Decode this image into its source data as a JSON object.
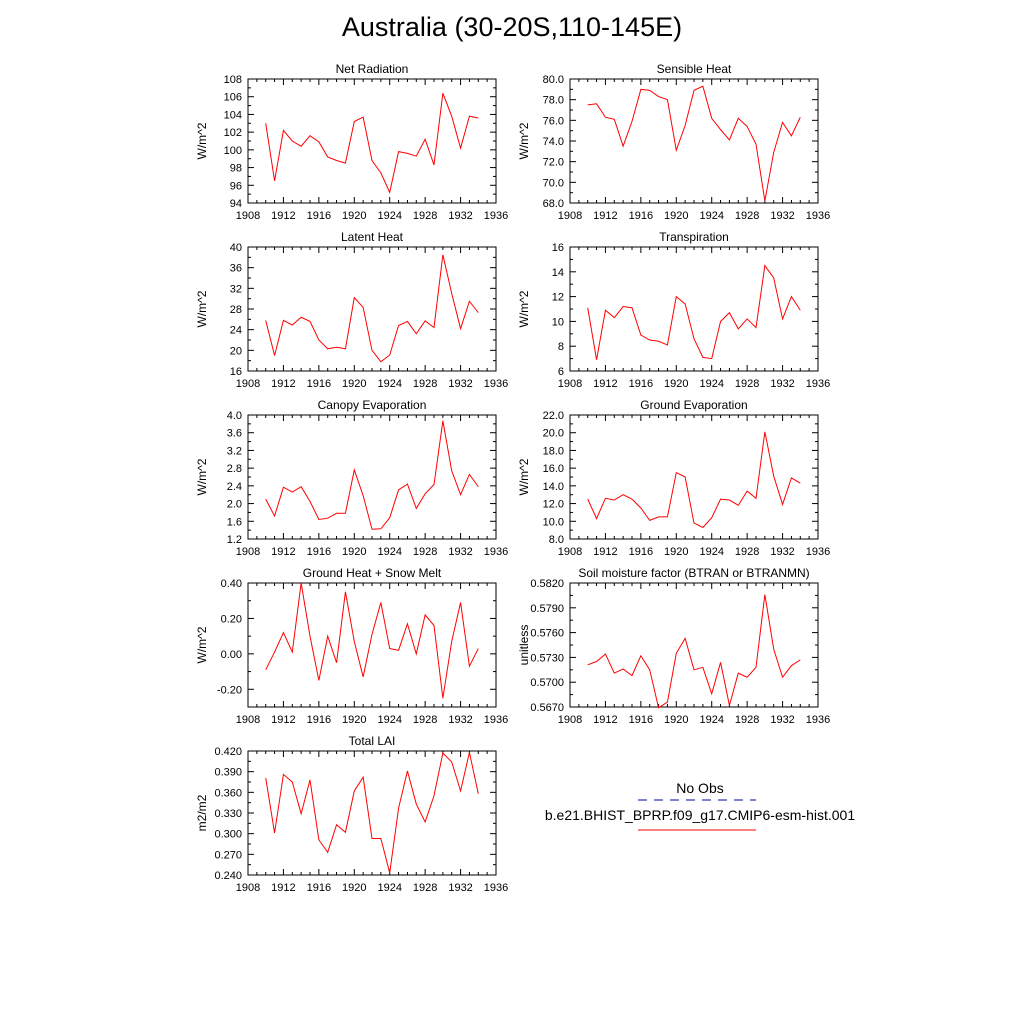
{
  "title": "Australia (30-20S,110-145E)",
  "colors": {
    "model": "#ff0000",
    "obs": "#0000aa"
  },
  "legend": {
    "obs_label": "No Obs",
    "model_label": "b.e21.BHIST_BPRP.f09_g17.CMIP6-esm-hist.001"
  },
  "chart_data": [
    {
      "type": "line",
      "title": "Net Radiation",
      "ylabel": "W/m^2",
      "xlim": [
        1908,
        1936
      ],
      "xticks": [
        "1908",
        "1912",
        "1916",
        "1920",
        "1924",
        "1928",
        "1932",
        "1936"
      ],
      "ylim": [
        94,
        108
      ],
      "yticks": [
        "94",
        "96",
        "98",
        "100",
        "102",
        "104",
        "106",
        "108"
      ],
      "x": [
        1910,
        1911,
        1912,
        1913,
        1914,
        1915,
        1916,
        1917,
        1918,
        1919,
        1920,
        1921,
        1922,
        1923,
        1924,
        1925,
        1926,
        1927,
        1928,
        1929,
        1930,
        1931,
        1932,
        1933,
        1934
      ],
      "series": [
        {
          "values": [
            103.0,
            96.5,
            102.2,
            101.0,
            100.4,
            101.6,
            100.9,
            99.2,
            98.8,
            98.5,
            103.2,
            103.7,
            98.8,
            97.4,
            95.2,
            99.8,
            99.6,
            99.3,
            101.2,
            98.3,
            106.4,
            103.8,
            100.2,
            103.8,
            103.6
          ]
        }
      ]
    },
    {
      "type": "line",
      "title": "Sensible Heat",
      "ylabel": "W/m^2",
      "xlim": [
        1908,
        1936
      ],
      "xticks": [
        "1908",
        "1912",
        "1916",
        "1920",
        "1924",
        "1928",
        "1932",
        "1936"
      ],
      "ylim": [
        68,
        80
      ],
      "yticks": [
        "68.0",
        "70.0",
        "72.0",
        "74.0",
        "76.0",
        "78.0",
        "80.0"
      ],
      "x": [
        1910,
        1911,
        1912,
        1913,
        1914,
        1915,
        1916,
        1917,
        1918,
        1919,
        1920,
        1921,
        1922,
        1923,
        1924,
        1925,
        1926,
        1927,
        1928,
        1929,
        1930,
        1931,
        1932,
        1933,
        1934
      ],
      "series": [
        {
          "values": [
            77.5,
            77.6,
            76.3,
            76.1,
            73.5,
            75.9,
            79.0,
            78.9,
            78.3,
            78.0,
            73.1,
            75.5,
            78.9,
            79.3,
            76.2,
            75.1,
            74.1,
            76.2,
            75.4,
            73.7,
            68.2,
            72.9,
            75.8,
            74.5,
            76.3
          ]
        }
      ]
    },
    {
      "type": "line",
      "title": "Latent Heat",
      "ylabel": "W/m^2",
      "xlim": [
        1908,
        1936
      ],
      "xticks": [
        "1908",
        "1912",
        "1916",
        "1920",
        "1924",
        "1928",
        "1932",
        "1936"
      ],
      "ylim": [
        16,
        40
      ],
      "yticks": [
        "16",
        "20",
        "24",
        "28",
        "32",
        "36",
        "40"
      ],
      "x": [
        1910,
        1911,
        1912,
        1913,
        1914,
        1915,
        1916,
        1917,
        1918,
        1919,
        1920,
        1921,
        1922,
        1923,
        1924,
        1925,
        1926,
        1927,
        1928,
        1929,
        1930,
        1931,
        1932,
        1933,
        1934
      ],
      "series": [
        {
          "values": [
            25.8,
            19.0,
            25.8,
            24.9,
            26.4,
            25.6,
            22.0,
            20.3,
            20.6,
            20.3,
            30.2,
            28.3,
            20.0,
            17.8,
            19.1,
            24.8,
            25.6,
            23.2,
            25.7,
            24.4,
            38.5,
            31.0,
            24.2,
            29.5,
            27.3
          ]
        }
      ]
    },
    {
      "type": "line",
      "title": "Transpiration",
      "ylabel": "W/m^2",
      "xlim": [
        1908,
        1936
      ],
      "xticks": [
        "1908",
        "1912",
        "1916",
        "1920",
        "1924",
        "1928",
        "1932",
        "1936"
      ],
      "ylim": [
        6,
        16
      ],
      "yticks": [
        "6",
        "8",
        "10",
        "12",
        "14",
        "16"
      ],
      "x": [
        1910,
        1911,
        1912,
        1913,
        1914,
        1915,
        1916,
        1917,
        1918,
        1919,
        1920,
        1921,
        1922,
        1923,
        1924,
        1925,
        1926,
        1927,
        1928,
        1929,
        1930,
        1931,
        1932,
        1933,
        1934
      ],
      "series": [
        {
          "values": [
            11.1,
            6.9,
            10.9,
            10.3,
            11.2,
            11.1,
            8.9,
            8.5,
            8.4,
            8.1,
            12.0,
            11.4,
            8.6,
            7.1,
            7.0,
            10.0,
            10.7,
            9.4,
            10.2,
            9.5,
            14.5,
            13.5,
            10.2,
            12.0,
            10.9
          ]
        }
      ]
    },
    {
      "type": "line",
      "title": "Canopy Evaporation",
      "ylabel": "W/m^2",
      "xlim": [
        1908,
        1936
      ],
      "xticks": [
        "1908",
        "1912",
        "1916",
        "1920",
        "1924",
        "1928",
        "1932",
        "1936"
      ],
      "ylim": [
        1.2,
        4.0
      ],
      "yticks": [
        "1.2",
        "1.6",
        "2.0",
        "2.4",
        "2.8",
        "3.2",
        "3.6",
        "4.0"
      ],
      "x": [
        1910,
        1911,
        1912,
        1913,
        1914,
        1915,
        1916,
        1917,
        1918,
        1919,
        1920,
        1921,
        1922,
        1923,
        1924,
        1925,
        1926,
        1927,
        1928,
        1929,
        1930,
        1931,
        1932,
        1933,
        1934
      ],
      "series": [
        {
          "values": [
            2.1,
            1.72,
            2.37,
            2.26,
            2.38,
            2.05,
            1.64,
            1.67,
            1.78,
            1.78,
            2.76,
            2.18,
            1.42,
            1.43,
            1.68,
            2.31,
            2.44,
            1.89,
            2.22,
            2.43,
            3.87,
            2.74,
            2.2,
            2.66,
            2.38
          ]
        }
      ]
    },
    {
      "type": "line",
      "title": "Ground Evaporation",
      "ylabel": "W/m^2",
      "xlim": [
        1908,
        1936
      ],
      "xticks": [
        "1908",
        "1912",
        "1916",
        "1920",
        "1924",
        "1928",
        "1932",
        "1936"
      ],
      "ylim": [
        8,
        22
      ],
      "yticks": [
        "8.0",
        "10.0",
        "12.0",
        "14.0",
        "16.0",
        "18.0",
        "20.0",
        "22.0"
      ],
      "x": [
        1910,
        1911,
        1912,
        1913,
        1914,
        1915,
        1916,
        1917,
        1918,
        1919,
        1920,
        1921,
        1922,
        1923,
        1924,
        1925,
        1926,
        1927,
        1928,
        1929,
        1930,
        1931,
        1932,
        1933,
        1934
      ],
      "series": [
        {
          "values": [
            12.5,
            10.3,
            12.6,
            12.4,
            13.0,
            12.5,
            11.5,
            10.1,
            10.5,
            10.5,
            15.5,
            15.0,
            9.8,
            9.3,
            10.4,
            12.5,
            12.4,
            11.8,
            13.4,
            12.6,
            20.1,
            15.1,
            11.9,
            14.9,
            14.3
          ]
        }
      ]
    },
    {
      "type": "line",
      "title": "Ground Heat + Snow Melt",
      "ylabel": "W/m^2",
      "xlim": [
        1908,
        1936
      ],
      "xticks": [
        "1908",
        "1912",
        "1916",
        "1920",
        "1924",
        "1928",
        "1932",
        "1936"
      ],
      "ylim": [
        -0.3,
        0.4
      ],
      "yticks": [
        "-0.20",
        "0.00",
        "0.20",
        "0.40"
      ],
      "ytick_values": [
        -0.2,
        0.0,
        0.2,
        0.4
      ],
      "x": [
        1910,
        1911,
        1912,
        1913,
        1914,
        1915,
        1916,
        1917,
        1918,
        1919,
        1920,
        1921,
        1922,
        1923,
        1924,
        1925,
        1926,
        1927,
        1928,
        1929,
        1930,
        1931,
        1932,
        1933,
        1934
      ],
      "series": [
        {
          "values": [
            -0.09,
            0.01,
            0.12,
            0.01,
            0.4,
            0.1,
            -0.15,
            0.1,
            -0.05,
            0.35,
            0.07,
            -0.13,
            0.11,
            0.29,
            0.03,
            0.02,
            0.17,
            0.0,
            0.22,
            0.16,
            -0.25,
            0.07,
            0.29,
            -0.07,
            0.03
          ]
        }
      ]
    },
    {
      "type": "line",
      "title": "Soil moisture factor (BTRAN or BTRANMN)",
      "ylabel": "unitless",
      "xlim": [
        1908,
        1936
      ],
      "xticks": [
        "1908",
        "1912",
        "1916",
        "1920",
        "1924",
        "1928",
        "1932",
        "1936"
      ],
      "ylim": [
        0.567,
        0.582
      ],
      "yticks": [
        "0.5670",
        "0.5700",
        "0.5730",
        "0.5760",
        "0.5790",
        "0.5820"
      ],
      "x": [
        1910,
        1911,
        1912,
        1913,
        1914,
        1915,
        1916,
        1917,
        1918,
        1919,
        1920,
        1921,
        1922,
        1923,
        1924,
        1925,
        1926,
        1927,
        1928,
        1929,
        1930,
        1931,
        1932,
        1933,
        1934
      ],
      "series": [
        {
          "values": [
            0.5721,
            0.5725,
            0.5734,
            0.5711,
            0.5716,
            0.5708,
            0.5732,
            0.5715,
            0.5669,
            0.5676,
            0.5735,
            0.5753,
            0.5715,
            0.5718,
            0.5686,
            0.5724,
            0.5672,
            0.5711,
            0.5706,
            0.5718,
            0.5806,
            0.574,
            0.5706,
            0.572,
            0.5727
          ]
        }
      ]
    },
    {
      "type": "line",
      "title": "Total LAI",
      "ylabel": "m2/m2",
      "xlim": [
        1908,
        1936
      ],
      "xticks": [
        "1908",
        "1912",
        "1916",
        "1920",
        "1924",
        "1928",
        "1932",
        "1936"
      ],
      "ylim": [
        0.24,
        0.42
      ],
      "yticks": [
        "0.240",
        "0.270",
        "0.300",
        "0.330",
        "0.360",
        "0.390",
        "0.420"
      ],
      "x": [
        1910,
        1911,
        1912,
        1913,
        1914,
        1915,
        1916,
        1917,
        1918,
        1919,
        1920,
        1921,
        1922,
        1923,
        1924,
        1925,
        1926,
        1927,
        1928,
        1929,
        1930,
        1931,
        1932,
        1933,
        1934
      ],
      "series": [
        {
          "values": [
            0.381,
            0.301,
            0.386,
            0.375,
            0.329,
            0.378,
            0.291,
            0.273,
            0.313,
            0.302,
            0.362,
            0.382,
            0.293,
            0.293,
            0.243,
            0.337,
            0.391,
            0.343,
            0.317,
            0.355,
            0.417,
            0.404,
            0.362,
            0.418,
            0.358
          ]
        }
      ]
    }
  ]
}
